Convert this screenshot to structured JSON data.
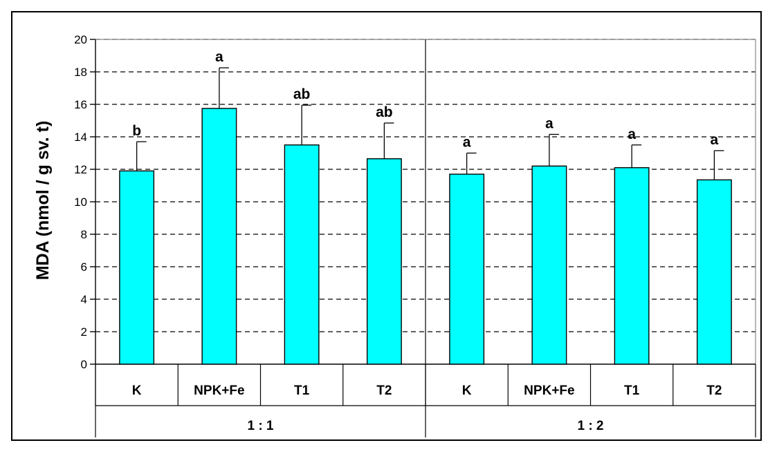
{
  "chart_data": {
    "type": "bar",
    "ylabel": "MDA (nmol / g sv. t)",
    "xlabel": "",
    "title": "",
    "ylim": [
      0,
      20
    ],
    "yticks": [
      0,
      2,
      4,
      6,
      8,
      10,
      12,
      14,
      16,
      18,
      20
    ],
    "grid": "dashed horizontal",
    "bar_color": "#00FFFF",
    "groups": [
      {
        "label": "1 : 1",
        "categories": [
          "K",
          "NPK+Fe",
          "T1",
          "T2"
        ],
        "values": [
          11.9,
          15.75,
          13.5,
          12.65
        ],
        "errors": [
          1.8,
          2.5,
          2.45,
          2.2
        ],
        "significance": [
          "b",
          "a",
          "ab",
          "ab"
        ]
      },
      {
        "label": "1 : 2",
        "categories": [
          "K",
          "NPK+Fe",
          "T1",
          "T2"
        ],
        "values": [
          11.7,
          12.2,
          12.1,
          11.35
        ],
        "errors": [
          1.3,
          1.95,
          1.4,
          1.8
        ],
        "significance": [
          "a",
          "a",
          "a",
          "a"
        ]
      }
    ]
  }
}
